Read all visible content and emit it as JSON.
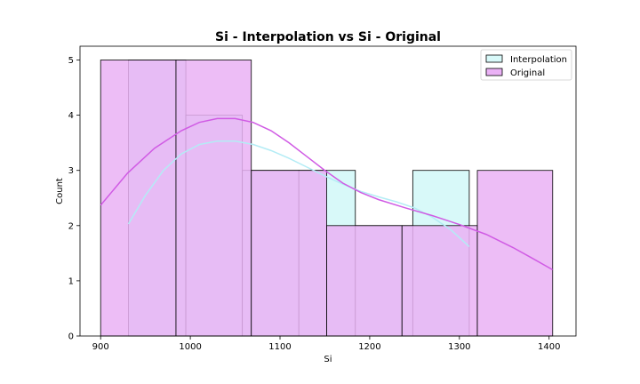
{
  "chart_data": {
    "type": "histogram",
    "title": "Si - Interpolation vs Si - Original",
    "xlabel": "Si",
    "ylabel": "Count",
    "xlim": [
      877,
      1430
    ],
    "ylim": [
      0,
      5.25
    ],
    "xticks": [
      900,
      1000,
      1100,
      1200,
      1300,
      1400
    ],
    "yticks": [
      0,
      1,
      2,
      3,
      4,
      5
    ],
    "grid": false,
    "legend_position": "top-right",
    "series": [
      {
        "name": "Original",
        "color": "#df9af2",
        "fill": "#eab1f5",
        "kde_color": "#d05be4",
        "bins": [
          {
            "x0": 900,
            "x1": 984,
            "count": 5
          },
          {
            "x0": 984,
            "x1": 1068,
            "count": 5
          },
          {
            "x0": 1068,
            "x1": 1152,
            "count": 3
          },
          {
            "x0": 1152,
            "x1": 1236,
            "count": 2
          },
          {
            "x0": 1236,
            "x1": 1320,
            "count": 2
          },
          {
            "x0": 1320,
            "x1": 1404,
            "count": 3
          }
        ],
        "kde": {
          "x": [
            900,
            930,
            960,
            990,
            1010,
            1030,
            1050,
            1070,
            1090,
            1110,
            1130,
            1150,
            1170,
            1190,
            1210,
            1240,
            1270,
            1300,
            1330,
            1360,
            1380,
            1404
          ],
          "y": [
            2.37,
            2.95,
            3.4,
            3.72,
            3.87,
            3.94,
            3.94,
            3.87,
            3.72,
            3.5,
            3.25,
            3.0,
            2.77,
            2.6,
            2.47,
            2.32,
            2.18,
            2.02,
            1.84,
            1.6,
            1.42,
            1.2
          ]
        }
      },
      {
        "name": "Interpolation",
        "color": "#9fe6ea",
        "fill": "#d8f9f9",
        "kde_color": "#b3ecf5",
        "bins": [
          {
            "x0": 931,
            "x1": 995,
            "count": 5
          },
          {
            "x0": 995,
            "x1": 1058,
            "count": 4
          },
          {
            "x0": 1058,
            "x1": 1121,
            "count": 3
          },
          {
            "x0": 1121,
            "x1": 1184,
            "count": 3
          },
          {
            "x0": 1184,
            "x1": 1248,
            "count": 2
          },
          {
            "x0": 1248,
            "x1": 1311,
            "count": 3
          }
        ],
        "kde": {
          "x": [
            931,
            950,
            970,
            990,
            1010,
            1030,
            1050,
            1070,
            1090,
            1110,
            1130,
            1150,
            1170,
            1190,
            1210,
            1230,
            1250,
            1270,
            1290,
            1311
          ],
          "y": [
            2.03,
            2.55,
            3.0,
            3.3,
            3.47,
            3.53,
            3.53,
            3.47,
            3.36,
            3.22,
            3.06,
            2.9,
            2.75,
            2.62,
            2.52,
            2.43,
            2.32,
            2.15,
            1.93,
            1.62
          ]
        }
      }
    ]
  }
}
